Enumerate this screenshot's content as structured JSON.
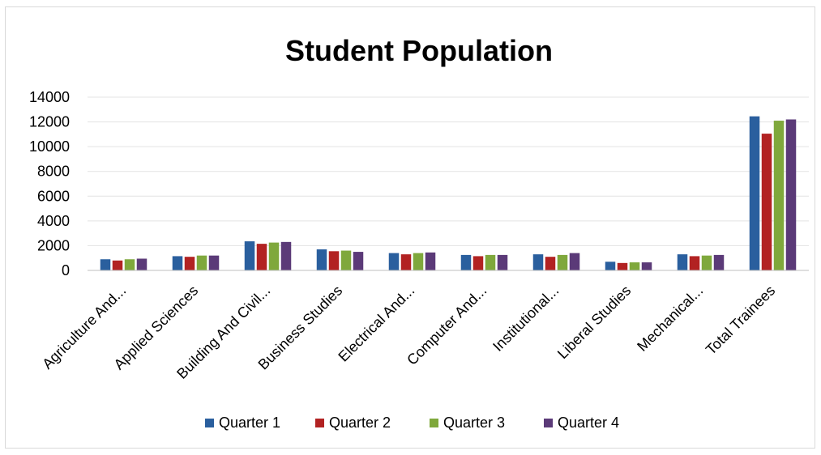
{
  "chart_data": {
    "type": "bar",
    "title": "Student Population",
    "xlabel": "",
    "ylabel": "",
    "ylim": [
      0,
      14000
    ],
    "yticks": [
      0,
      2000,
      4000,
      6000,
      8000,
      10000,
      12000,
      14000
    ],
    "grid": true,
    "legend_position": "bottom",
    "categories": [
      "Agriculture And...",
      "Applied Sciences",
      "Building And Civil...",
      "Business Studies",
      "Electrical And...",
      "Computer And...",
      "Institutional...",
      "Liberal Studies",
      "Mechanical...",
      "Total Trainees"
    ],
    "series": [
      {
        "name": "Quarter 1",
        "color": "#2a5f9e",
        "values": [
          900,
          1150,
          2350,
          1700,
          1400,
          1250,
          1300,
          700,
          1300,
          12450
        ]
      },
      {
        "name": "Quarter 2",
        "color": "#b22222",
        "values": [
          800,
          1100,
          2150,
          1550,
          1300,
          1150,
          1100,
          600,
          1150,
          11050
        ]
      },
      {
        "name": "Quarter 3",
        "color": "#7fa83c",
        "values": [
          900,
          1200,
          2250,
          1600,
          1400,
          1250,
          1250,
          650,
          1200,
          12100
        ]
      },
      {
        "name": "Quarter 4",
        "color": "#5b3a78",
        "values": [
          950,
          1200,
          2300,
          1500,
          1450,
          1250,
          1400,
          650,
          1250,
          12200
        ]
      }
    ]
  }
}
